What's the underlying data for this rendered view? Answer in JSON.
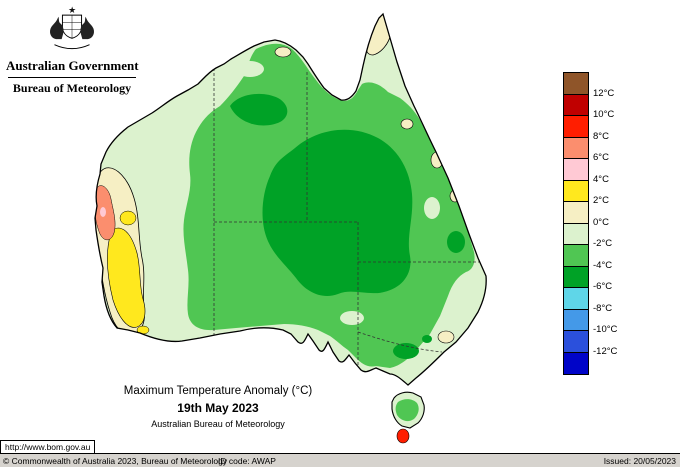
{
  "header": {
    "gov_title": "Australian Government",
    "agency": "Bureau of Meteorology"
  },
  "map": {
    "title": "Maximum Temperature Anomaly (°C)",
    "date": "19th May 2023",
    "source": "Australian Bureau of Meteorology"
  },
  "legend": {
    "labels": [
      "12°C",
      "10°C",
      "8°C",
      "6°C",
      "4°C",
      "2°C",
      "0°C",
      "-2°C",
      "-4°C",
      "-6°C",
      "-8°C",
      "-10°C",
      "-12°C"
    ],
    "colors": [
      "#8F5529",
      "#C00000",
      "#FF1E00",
      "#FB8E6E",
      "#FFC9D4",
      "#FFE81E",
      "#F6EFC4",
      "#DCF2CE",
      "#50C653",
      "#00A226",
      "#5FD6E8",
      "#4499E8",
      "#2B50DC",
      "#0004C8"
    ]
  },
  "footer": {
    "url": "http://www.bom.gov.au",
    "copyright": "© Commonwealth of Australia 2023, Bureau of Meteorology",
    "id_code": "ID code: AWAP",
    "issued": "Issued: 20/05/2023"
  }
}
